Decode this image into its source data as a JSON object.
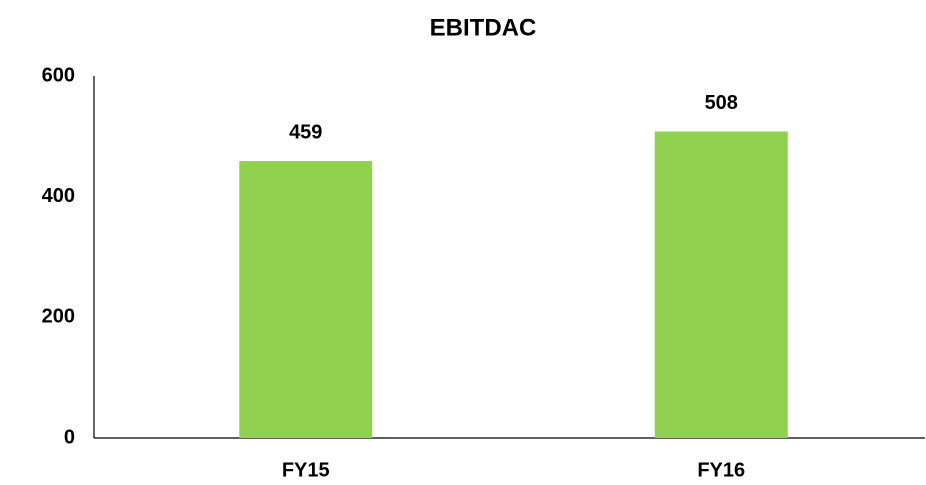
{
  "chart_data": {
    "type": "bar",
    "title": "EBITDAC",
    "categories": [
      "FY15",
      "FY16"
    ],
    "values": [
      459,
      508
    ],
    "color": "#92d050",
    "ylim": [
      0,
      600
    ],
    "yticks": [
      0,
      200,
      400,
      600
    ],
    "grid": false
  }
}
